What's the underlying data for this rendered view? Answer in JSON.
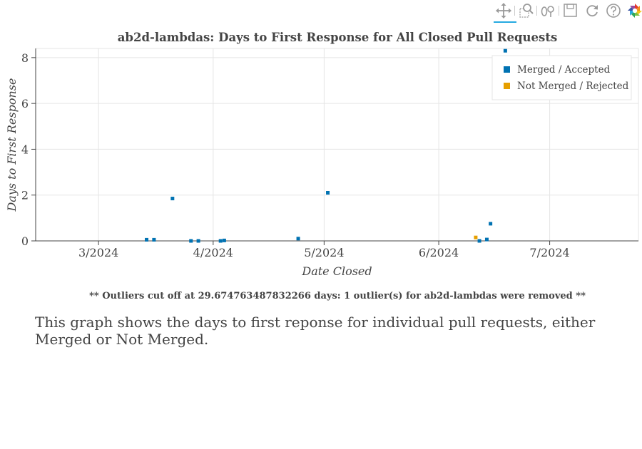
{
  "toolbar": {
    "tools": [
      "pan-icon",
      "box-zoom-icon",
      "wheel-zoom-icon",
      "save-icon",
      "reset-icon",
      "help-icon",
      "bokeh-logo-icon"
    ]
  },
  "chart_data": {
    "type": "scatter",
    "title": "ab2d-lambdas: Days to First Response for All Closed Pull Requests",
    "xlabel": "Date Closed",
    "ylabel": "Days to First Response",
    "xlim": [
      "2024-02-13",
      "2024-07-25"
    ],
    "ylim": [
      0,
      8.4
    ],
    "x_ticks": [
      {
        "date": "2024-03-01",
        "label": "3/2024"
      },
      {
        "date": "2024-04-01",
        "label": "4/2024"
      },
      {
        "date": "2024-05-01",
        "label": "5/2024"
      },
      {
        "date": "2024-06-01",
        "label": "6/2024"
      },
      {
        "date": "2024-07-01",
        "label": "7/2024"
      }
    ],
    "y_ticks": [
      0,
      2,
      4,
      6,
      8
    ],
    "grid": true,
    "legend_position": "top-right",
    "series": [
      {
        "name": "Merged / Accepted",
        "color": "#0072b2",
        "points": [
          {
            "x": "2024-03-14",
            "y": 0.05
          },
          {
            "x": "2024-03-16",
            "y": 0.05
          },
          {
            "x": "2024-03-21",
            "y": 1.85
          },
          {
            "x": "2024-03-26",
            "y": 0.0
          },
          {
            "x": "2024-03-28",
            "y": 0.0
          },
          {
            "x": "2024-04-03",
            "y": 0.0
          },
          {
            "x": "2024-04-04",
            "y": 0.02
          },
          {
            "x": "2024-04-24",
            "y": 0.1
          },
          {
            "x": "2024-05-02",
            "y": 2.1
          },
          {
            "x": "2024-06-12",
            "y": 0.0
          },
          {
            "x": "2024-06-14",
            "y": 0.06
          },
          {
            "x": "2024-06-15",
            "y": 0.75
          },
          {
            "x": "2024-06-19",
            "y": 8.3
          }
        ]
      },
      {
        "name": "Not Merged / Rejected",
        "color": "#e69f00",
        "points": [
          {
            "x": "2024-06-11",
            "y": 0.15
          }
        ]
      }
    ]
  },
  "note": "** Outliers cut off at 29.674763487832266 days: 1 outlier(s) for ab2d-lambdas were removed **",
  "description": "This graph shows the days to first reponse for individual pull requests, either Merged or Not Merged."
}
